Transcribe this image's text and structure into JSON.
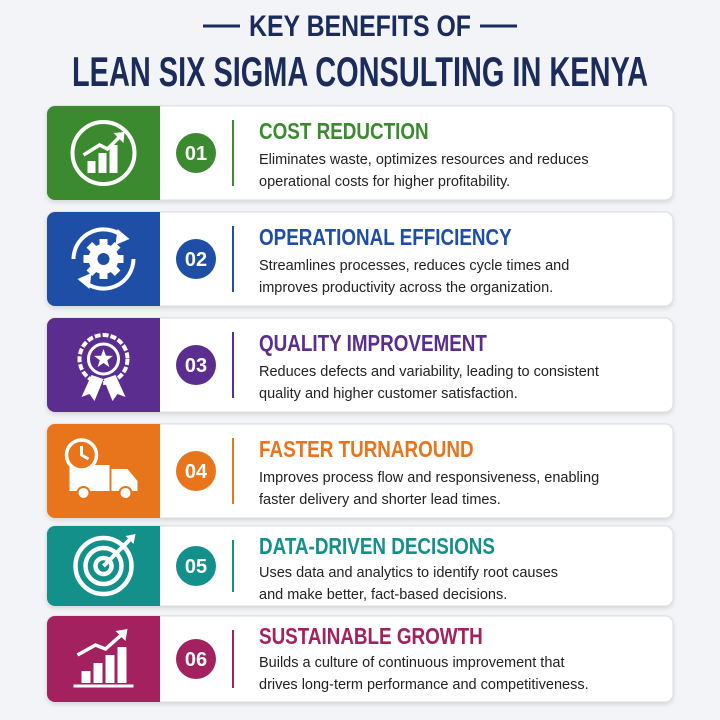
{
  "header": {
    "title_line1": "KEY BENEFITS OF",
    "title_line2": "LEAN SIX SIGMA CONSULTING IN KENYA"
  },
  "items": [
    {
      "number": "01",
      "title": "COST REDUCTION",
      "color": "#3b8a2f",
      "description": [
        "Eliminates waste, optimizes resources and reduces",
        "operational costs for higher profitability."
      ]
    },
    {
      "number": "02",
      "title": "OPERATIONAL EFFICIENCY",
      "color": "#1f4ea6",
      "description": [
        "Streamlines processes, reduces cycle times and",
        "improves productivity across the organization."
      ]
    },
    {
      "number": "03",
      "title": "QUALITY IMPROVEMENT",
      "color": "#5a2d8f",
      "description": [
        "Reduces defects and variability, leading to consistent",
        "quality and higher customer satisfaction."
      ]
    },
    {
      "number": "04",
      "title": "FASTER TURNAROUND",
      "color": "#e8741b",
      "description": [
        "Improves process flow and responsiveness, enabling",
        "faster delivery and shorter lead times."
      ]
    },
    {
      "number": "05",
      "title": "DATA-DRIVEN DECISIONS",
      "color": "#14908b",
      "description": [
        "Uses data and analytics to identify root causes",
        "and make better, fact-based decisions."
      ]
    },
    {
      "number": "06",
      "title": "SUSTAINABLE GROWTH",
      "color": "#a2215e",
      "description": [
        "Builds a culture of continuous improvement that",
        "drives long-term performance and competitiveness."
      ]
    }
  ]
}
